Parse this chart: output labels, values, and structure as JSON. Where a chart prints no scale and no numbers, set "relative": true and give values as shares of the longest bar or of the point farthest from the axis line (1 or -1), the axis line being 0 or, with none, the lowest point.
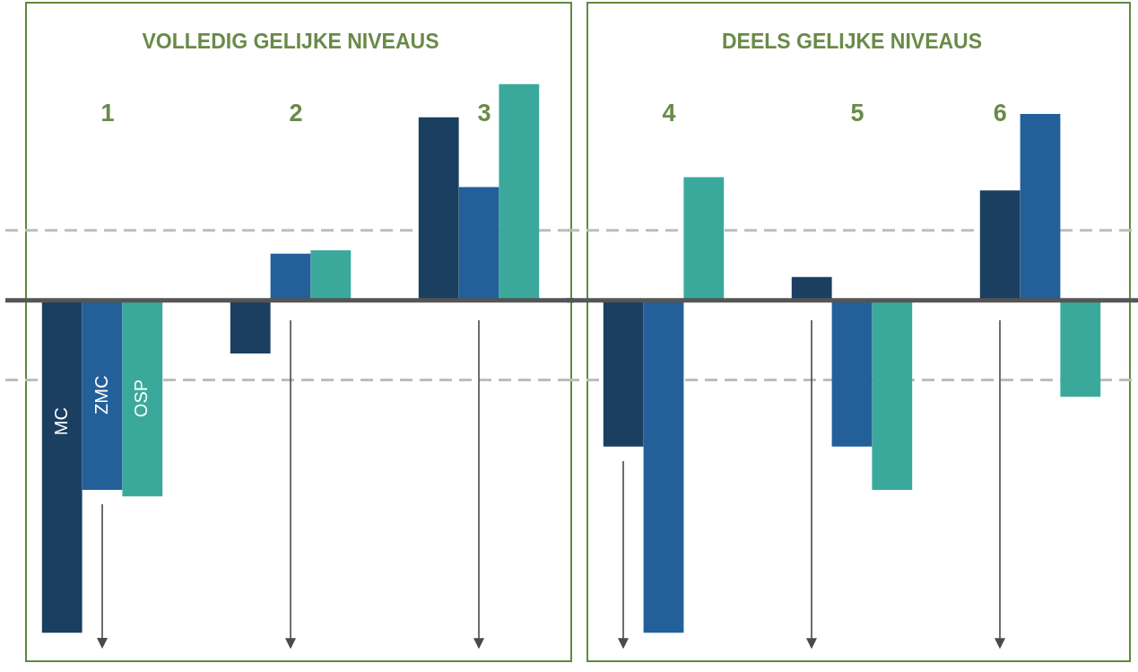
{
  "chart_data": [
    {
      "type": "bar",
      "title": "VOLLEDIG GELIJKE NIVEAUS",
      "categories": [
        "1",
        "2",
        "3"
      ],
      "relative": true,
      "series": [
        {
          "name": "MC",
          "color": "#1b3f61",
          "values": [
            -1,
            -0.16,
            0.55
          ]
        },
        {
          "name": "ZMC",
          "color": "#23609a",
          "values": [
            -0.57,
            0.14,
            0.34
          ]
        },
        {
          "name": "OSP",
          "color": "#3aa99c",
          "values": [
            -0.59,
            0.15,
            0.65
          ]
        }
      ],
      "ref_lines": [
        {
          "axis": "y",
          "value": 0.21,
          "color": "#bdbdbd",
          "line_style": "dashed"
        },
        {
          "axis": "y",
          "value": -0.24,
          "color": "#bdbdbd",
          "line_style": "dashed"
        }
      ]
    },
    {
      "type": "bar",
      "title": "DEELS GELIJKE NIVEAUS",
      "categories": [
        "4",
        "5",
        "6"
      ],
      "relative": true,
      "series": [
        {
          "color": "#1b3f61",
          "values": [
            -0.44,
            0.07,
            0.33
          ]
        },
        {
          "color": "#23609a",
          "values": [
            -1,
            -0.44,
            0.56
          ]
        },
        {
          "color": "#3aa99c",
          "values": [
            0.37,
            -0.57,
            -0.29
          ]
        }
      ],
      "ref_lines": [
        {
          "axis": "y",
          "value": 0.21,
          "color": "#bdbdbd",
          "line_style": "dashed"
        },
        {
          "axis": "y",
          "value": -0.24,
          "color": "#bdbdbd",
          "line_style": "dashed"
        }
      ]
    }
  ]
}
